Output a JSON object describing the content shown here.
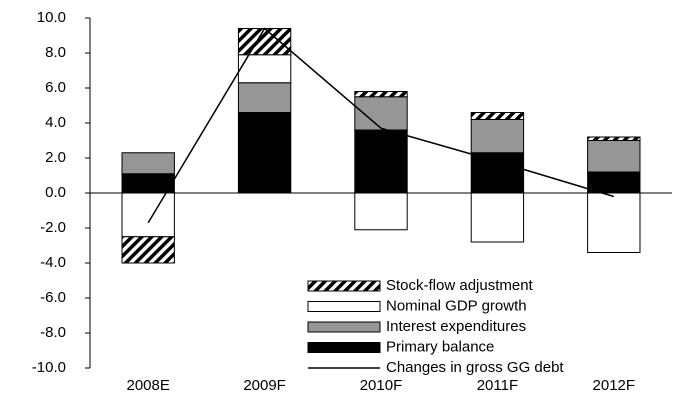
{
  "chart_data": {
    "type": "bar",
    "stacked": true,
    "categories": [
      "2008E",
      "2009F",
      "2010F",
      "2011F",
      "2012F"
    ],
    "series": [
      {
        "name": "Stock-flow adjustment",
        "color": "#000000",
        "pattern": "hatch",
        "values": [
          -1.5,
          1.5,
          0.3,
          0.4,
          0.2
        ]
      },
      {
        "name": "Nominal GDP growth",
        "color": "#ffffff",
        "values": [
          -2.5,
          1.6,
          -2.1,
          -2.8,
          -3.4
        ]
      },
      {
        "name": "Interest expenditures",
        "color": "#969696",
        "values": [
          1.2,
          1.7,
          1.9,
          1.9,
          1.8
        ]
      },
      {
        "name": "Primary balance",
        "color": "#000000",
        "values": [
          1.1,
          4.6,
          3.6,
          2.3,
          1.2
        ]
      },
      {
        "name": "Changes in gross GG debt",
        "type": "line",
        "color": "#000000",
        "values": [
          -1.7,
          9.4,
          3.7,
          1.8,
          -0.2
        ]
      }
    ],
    "ylim": [
      -10,
      10
    ],
    "yticks": [
      {
        "value": -10,
        "label": "-10.0"
      },
      {
        "value": -8,
        "label": "-8.0"
      },
      {
        "value": -6,
        "label": "-6.0"
      },
      {
        "value": -4,
        "label": "-4.0"
      },
      {
        "value": -2,
        "label": "-2.0"
      },
      {
        "value": 0,
        "label": "0.0"
      },
      {
        "value": 2,
        "label": "2.0"
      },
      {
        "value": 4,
        "label": "4.0"
      },
      {
        "value": 6,
        "label": "6.0"
      },
      {
        "value": 8,
        "label": "8.0"
      },
      {
        "value": 10,
        "label": "10.0"
      }
    ],
    "legend": "lower right"
  }
}
